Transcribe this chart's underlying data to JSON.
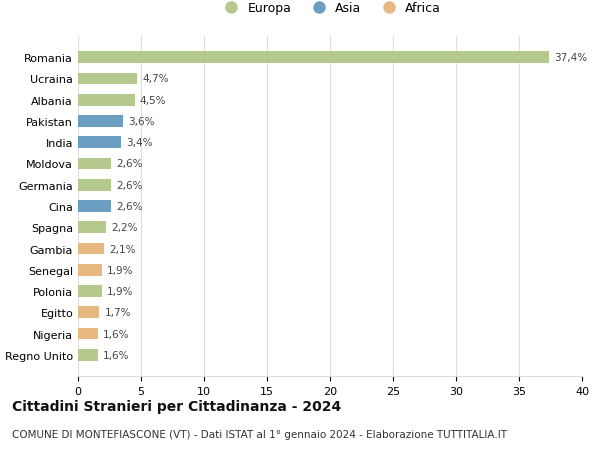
{
  "countries": [
    "Romania",
    "Ucraina",
    "Albania",
    "Pakistan",
    "India",
    "Moldova",
    "Germania",
    "Cina",
    "Spagna",
    "Gambia",
    "Senegal",
    "Polonia",
    "Egitto",
    "Nigeria",
    "Regno Unito"
  ],
  "values": [
    37.4,
    4.7,
    4.5,
    3.6,
    3.4,
    2.6,
    2.6,
    2.6,
    2.2,
    2.1,
    1.9,
    1.9,
    1.7,
    1.6,
    1.6
  ],
  "labels": [
    "37,4%",
    "4,7%",
    "4,5%",
    "3,6%",
    "3,4%",
    "2,6%",
    "2,6%",
    "2,6%",
    "2,2%",
    "2,1%",
    "1,9%",
    "1,9%",
    "1,7%",
    "1,6%",
    "1,6%"
  ],
  "continents": [
    "Europa",
    "Europa",
    "Europa",
    "Asia",
    "Asia",
    "Europa",
    "Europa",
    "Asia",
    "Europa",
    "Africa",
    "Africa",
    "Europa",
    "Africa",
    "Africa",
    "Europa"
  ],
  "colors": {
    "Europa": "#b5c98e",
    "Asia": "#6b9ec0",
    "Africa": "#e8b882"
  },
  "xlim": [
    0,
    40
  ],
  "xticks": [
    0,
    5,
    10,
    15,
    20,
    25,
    30,
    35,
    40
  ],
  "title": "Cittadini Stranieri per Cittadinanza - 2024",
  "subtitle": "COMUNE DI MONTEFIASCONE (VT) - Dati ISTAT al 1° gennaio 2024 - Elaborazione TUTTITALIA.IT",
  "background_color": "#ffffff",
  "grid_color": "#dddddd",
  "title_fontsize": 10,
  "subtitle_fontsize": 7.5,
  "label_fontsize": 7.5,
  "tick_fontsize": 8,
  "bar_height": 0.55
}
